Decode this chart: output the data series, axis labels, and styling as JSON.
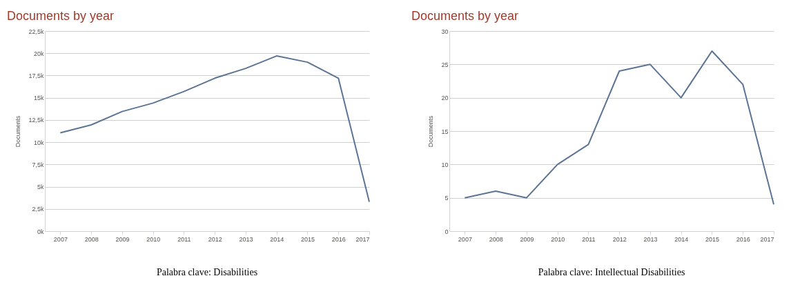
{
  "chart_data": [
    {
      "type": "line",
      "title": "Documents by year",
      "ylabel": "Documents",
      "x": [
        2007,
        2008,
        2009,
        2010,
        2011,
        2012,
        2013,
        2014,
        2015,
        2016,
        2017
      ],
      "series": [
        {
          "color": "#5b7493",
          "values": [
            11050,
            11950,
            13450,
            14400,
            15700,
            17200,
            18300,
            19700,
            19000,
            17200,
            3300
          ]
        }
      ],
      "xlim": [
        2006.5,
        2017
      ],
      "xticks": [
        2007,
        2008,
        2009,
        2010,
        2011,
        2012,
        2013,
        2014,
        2015,
        2016,
        2017
      ],
      "ylim": [
        0,
        22500
      ],
      "yticks": [
        {
          "value": 0,
          "label": "0k"
        },
        {
          "value": 2500,
          "label": "2,5k"
        },
        {
          "value": 5000,
          "label": "5k"
        },
        {
          "value": 7500,
          "label": "7,5k"
        },
        {
          "value": 10000,
          "label": "10k"
        },
        {
          "value": 12500,
          "label": "12,5k"
        },
        {
          "value": 15000,
          "label": "15k"
        },
        {
          "value": 17500,
          "label": "17,5k"
        },
        {
          "value": 20000,
          "label": "20k"
        },
        {
          "value": 22500,
          "label": "22,5k"
        }
      ],
      "grid": "y",
      "annotations": [
        "Palabra clave: Disabilities"
      ]
    },
    {
      "type": "line",
      "title": "Documents by year",
      "ylabel": "Documents",
      "x": [
        2007,
        2008,
        2009,
        2010,
        2011,
        2012,
        2013,
        2014,
        2015,
        2016,
        2017
      ],
      "series": [
        {
          "color": "#5b7493",
          "values": [
            5,
            6,
            5,
            10,
            13,
            24,
            25,
            20,
            27,
            22,
            4
          ]
        }
      ],
      "xlim": [
        2006.5,
        2017
      ],
      "xticks": [
        2007,
        2008,
        2009,
        2010,
        2011,
        2012,
        2013,
        2014,
        2015,
        2016,
        2017
      ],
      "ylim": [
        0,
        30
      ],
      "yticks": [
        0,
        5,
        10,
        15,
        20,
        25,
        30
      ],
      "grid": "y",
      "annotations": [
        "Palabra clave: Intellectual Disabilities"
      ]
    }
  ]
}
